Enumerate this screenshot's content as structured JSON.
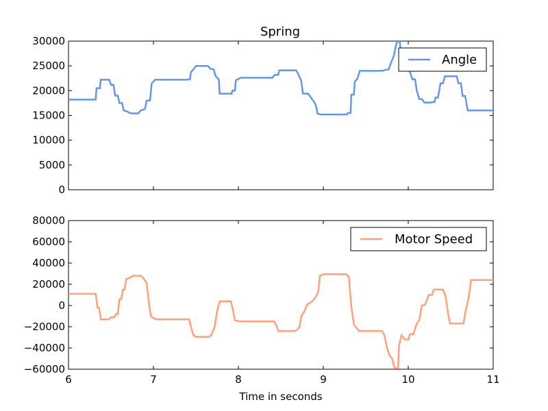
{
  "figure": {
    "title": "Spring",
    "xlabel": "Time in seconds"
  },
  "chart_data": [
    {
      "type": "line",
      "title": "Spring",
      "xlabel": "",
      "ylabel": "",
      "xlim": [
        6,
        11
      ],
      "ylim": [
        0,
        30000
      ],
      "xticks": [
        6,
        7,
        8,
        9,
        10,
        11
      ],
      "yticks": [
        0,
        5000,
        10000,
        15000,
        20000,
        25000,
        30000
      ],
      "ytick_labels": [
        "0",
        "5000",
        "10000",
        "15000",
        "20000",
        "25000",
        "30000"
      ],
      "grid": false,
      "legend_position": "top-right",
      "series": [
        {
          "name": "Angle",
          "color": "#6495ed",
          "points": [
            [
              6.0,
              18200
            ],
            [
              6.32,
              18200
            ],
            [
              6.33,
              20500
            ],
            [
              6.37,
              20500
            ],
            [
              6.38,
              22200
            ],
            [
              6.48,
              22200
            ],
            [
              6.5,
              21200
            ],
            [
              6.53,
              21200
            ],
            [
              6.55,
              19000
            ],
            [
              6.58,
              19000
            ],
            [
              6.6,
              17500
            ],
            [
              6.63,
              17500
            ],
            [
              6.65,
              16000
            ],
            [
              6.69,
              15800
            ],
            [
              6.72,
              15500
            ],
            [
              6.76,
              15400
            ],
            [
              6.82,
              15400
            ],
            [
              6.85,
              16000
            ],
            [
              6.9,
              16300
            ],
            [
              6.92,
              18000
            ],
            [
              6.96,
              18000
            ],
            [
              6.98,
              21500
            ],
            [
              7.02,
              22200
            ],
            [
              7.4,
              22200
            ],
            [
              7.41,
              22300
            ],
            [
              7.43,
              22300
            ],
            [
              7.44,
              23700
            ],
            [
              7.48,
              24500
            ],
            [
              7.5,
              25000
            ],
            [
              7.64,
              25000
            ],
            [
              7.67,
              24400
            ],
            [
              7.71,
              24300
            ],
            [
              7.73,
              23000
            ],
            [
              7.77,
              22200
            ],
            [
              7.78,
              19400
            ],
            [
              7.92,
              19400
            ],
            [
              7.93,
              20000
            ],
            [
              7.96,
              20000
            ],
            [
              7.97,
              22100
            ],
            [
              8.03,
              22600
            ],
            [
              8.4,
              22600
            ],
            [
              8.43,
              23200
            ],
            [
              8.47,
              23200
            ],
            [
              8.48,
              24100
            ],
            [
              8.68,
              24100
            ],
            [
              8.7,
              23500
            ],
            [
              8.74,
              22000
            ],
            [
              8.76,
              19400
            ],
            [
              8.82,
              19400
            ],
            [
              8.85,
              18700
            ],
            [
              8.9,
              17500
            ],
            [
              8.92,
              16500
            ],
            [
              8.93,
              15400
            ],
            [
              8.97,
              15200
            ],
            [
              9.28,
              15200
            ],
            [
              9.29,
              15500
            ],
            [
              9.32,
              15500
            ],
            [
              9.33,
              19200
            ],
            [
              9.36,
              19200
            ],
            [
              9.37,
              21800
            ],
            [
              9.4,
              22400
            ],
            [
              9.43,
              24000
            ],
            [
              9.7,
              24000
            ],
            [
              9.73,
              24200
            ],
            [
              9.77,
              24300
            ],
            [
              9.8,
              25800
            ],
            [
              9.83,
              27000
            ],
            [
              9.86,
              29500
            ],
            [
              9.88,
              30000
            ],
            [
              9.9,
              30000
            ],
            [
              9.91,
              28000
            ],
            [
              9.97,
              27000
            ],
            [
              10.02,
              23700
            ],
            [
              10.05,
              22300
            ],
            [
              10.08,
              22300
            ],
            [
              10.1,
              20000
            ],
            [
              10.13,
              18300
            ],
            [
              10.16,
              18300
            ],
            [
              10.19,
              17600
            ],
            [
              10.26,
              17600
            ],
            [
              10.28,
              17700
            ],
            [
              10.31,
              17700
            ],
            [
              10.32,
              18600
            ],
            [
              10.35,
              18600
            ],
            [
              10.38,
              21500
            ],
            [
              10.41,
              21500
            ],
            [
              10.43,
              22900
            ],
            [
              10.57,
              22900
            ],
            [
              10.59,
              21500
            ],
            [
              10.62,
              21500
            ],
            [
              10.64,
              18900
            ],
            [
              10.67,
              18900
            ],
            [
              10.7,
              16000
            ],
            [
              11.0,
              16000
            ]
          ]
        }
      ]
    },
    {
      "type": "line",
      "title": "",
      "xlabel": "Time in seconds",
      "ylabel": "",
      "xlim": [
        6,
        11
      ],
      "ylim": [
        -60000,
        80000
      ],
      "xticks": [
        6,
        7,
        8,
        9,
        10,
        11
      ],
      "xtick_labels": [
        "6",
        "7",
        "8",
        "9",
        "10",
        "11"
      ],
      "yticks": [
        -60000,
        -40000,
        -20000,
        0,
        20000,
        40000,
        60000,
        80000
      ],
      "ytick_labels": [
        "−60000",
        "−40000",
        "−20000",
        "0",
        "20000",
        "40000",
        "60000",
        "80000"
      ],
      "grid": false,
      "legend_position": "top-right",
      "series": [
        {
          "name": "Motor Speed",
          "color": "#ffa07a",
          "points": [
            [
              6.0,
              11000
            ],
            [
              6.32,
              11000
            ],
            [
              6.34,
              -2000
            ],
            [
              6.36,
              -2000
            ],
            [
              6.38,
              -13000
            ],
            [
              6.48,
              -13000
            ],
            [
              6.5,
              -11000
            ],
            [
              6.54,
              -11000
            ],
            [
              6.56,
              -8000
            ],
            [
              6.58,
              -8000
            ],
            [
              6.6,
              6000
            ],
            [
              6.62,
              6000
            ],
            [
              6.64,
              15000
            ],
            [
              6.66,
              15000
            ],
            [
              6.68,
              25000
            ],
            [
              6.72,
              26000
            ],
            [
              6.76,
              28000
            ],
            [
              6.85,
              28000
            ],
            [
              6.88,
              26000
            ],
            [
              6.92,
              21000
            ],
            [
              6.95,
              0
            ],
            [
              6.97,
              -10000
            ],
            [
              7.0,
              -12000
            ],
            [
              7.04,
              -13000
            ],
            [
              7.42,
              -13000
            ],
            [
              7.44,
              -20000
            ],
            [
              7.47,
              -28000
            ],
            [
              7.5,
              -29500
            ],
            [
              7.65,
              -29500
            ],
            [
              7.68,
              -28000
            ],
            [
              7.72,
              -20000
            ],
            [
              7.75,
              -5000
            ],
            [
              7.78,
              4000
            ],
            [
              7.91,
              4000
            ],
            [
              7.93,
              -2000
            ],
            [
              7.96,
              -14000
            ],
            [
              8.03,
              -15000
            ],
            [
              8.42,
              -15000
            ],
            [
              8.45,
              -19000
            ],
            [
              8.47,
              -24000
            ],
            [
              8.66,
              -24000
            ],
            [
              8.69,
              -23000
            ],
            [
              8.72,
              -20000
            ],
            [
              8.74,
              -10000
            ],
            [
              8.78,
              -5000
            ],
            [
              8.81,
              1000
            ],
            [
              8.85,
              3000
            ],
            [
              8.88,
              5000
            ],
            [
              8.91,
              8000
            ],
            [
              8.94,
              13000
            ],
            [
              8.96,
              28000
            ],
            [
              9.0,
              29500
            ],
            [
              9.27,
              29500
            ],
            [
              9.3,
              27000
            ],
            [
              9.33,
              -1000
            ],
            [
              9.36,
              -18000
            ],
            [
              9.4,
              -22000
            ],
            [
              9.42,
              -24000
            ],
            [
              9.69,
              -24000
            ],
            [
              9.72,
              -28000
            ],
            [
              9.75,
              -40000
            ],
            [
              9.78,
              -47000
            ],
            [
              9.81,
              -50000
            ],
            [
              9.84,
              -59000
            ],
            [
              9.88,
              -59000
            ],
            [
              9.89,
              -38000
            ],
            [
              9.92,
              -28000
            ],
            [
              9.96,
              -32000
            ],
            [
              10.0,
              -32000
            ],
            [
              10.02,
              -27000
            ],
            [
              10.06,
              -27000
            ],
            [
              10.1,
              -17000
            ],
            [
              10.13,
              -14000
            ],
            [
              10.16,
              0
            ],
            [
              10.2,
              1000
            ],
            [
              10.24,
              10000
            ],
            [
              10.28,
              10000
            ],
            [
              10.3,
              15000
            ],
            [
              10.41,
              15000
            ],
            [
              10.44,
              8000
            ],
            [
              10.47,
              -8000
            ],
            [
              10.49,
              -17000
            ],
            [
              10.65,
              -17000
            ],
            [
              10.67,
              -7000
            ],
            [
              10.71,
              7000
            ],
            [
              10.74,
              24000
            ],
            [
              11.0,
              24000
            ]
          ]
        }
      ]
    }
  ]
}
